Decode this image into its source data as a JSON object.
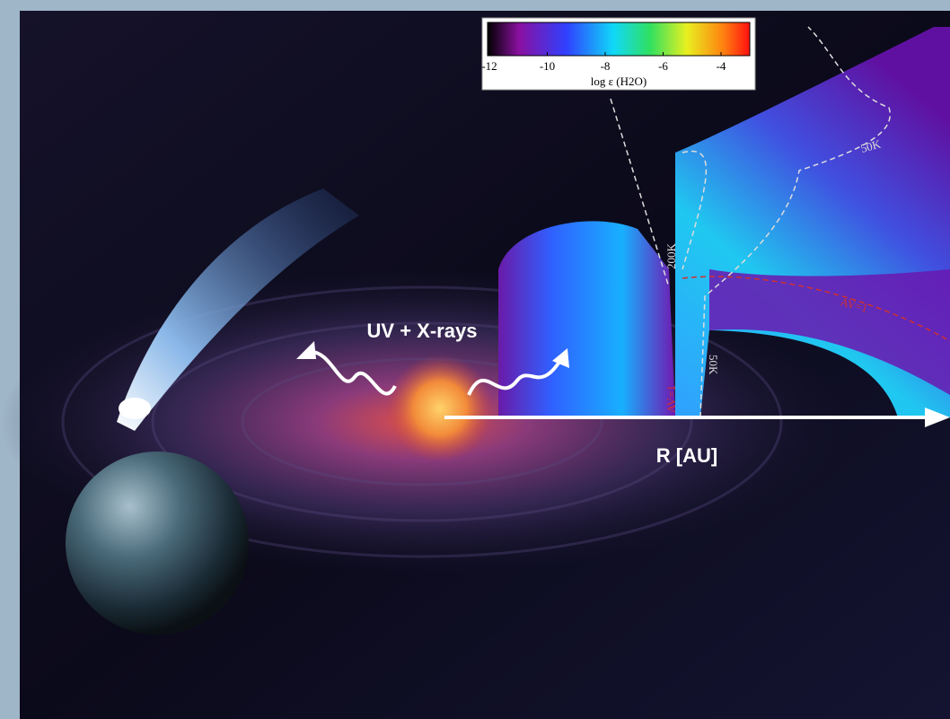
{
  "colorbar": {
    "ticks": [
      -12,
      -10,
      -8,
      -6,
      -4
    ],
    "label": "log ε (H2O)"
  },
  "annotations": {
    "radiation": "UV + X-rays",
    "axis": "R [AU]"
  },
  "contours": {
    "outer_temperature": "50K",
    "inner_temperature": "200K",
    "inner_temperature_midplane": "50K",
    "extinction_surface": "AV=1",
    "extinction_inner": "AV=1"
  }
}
